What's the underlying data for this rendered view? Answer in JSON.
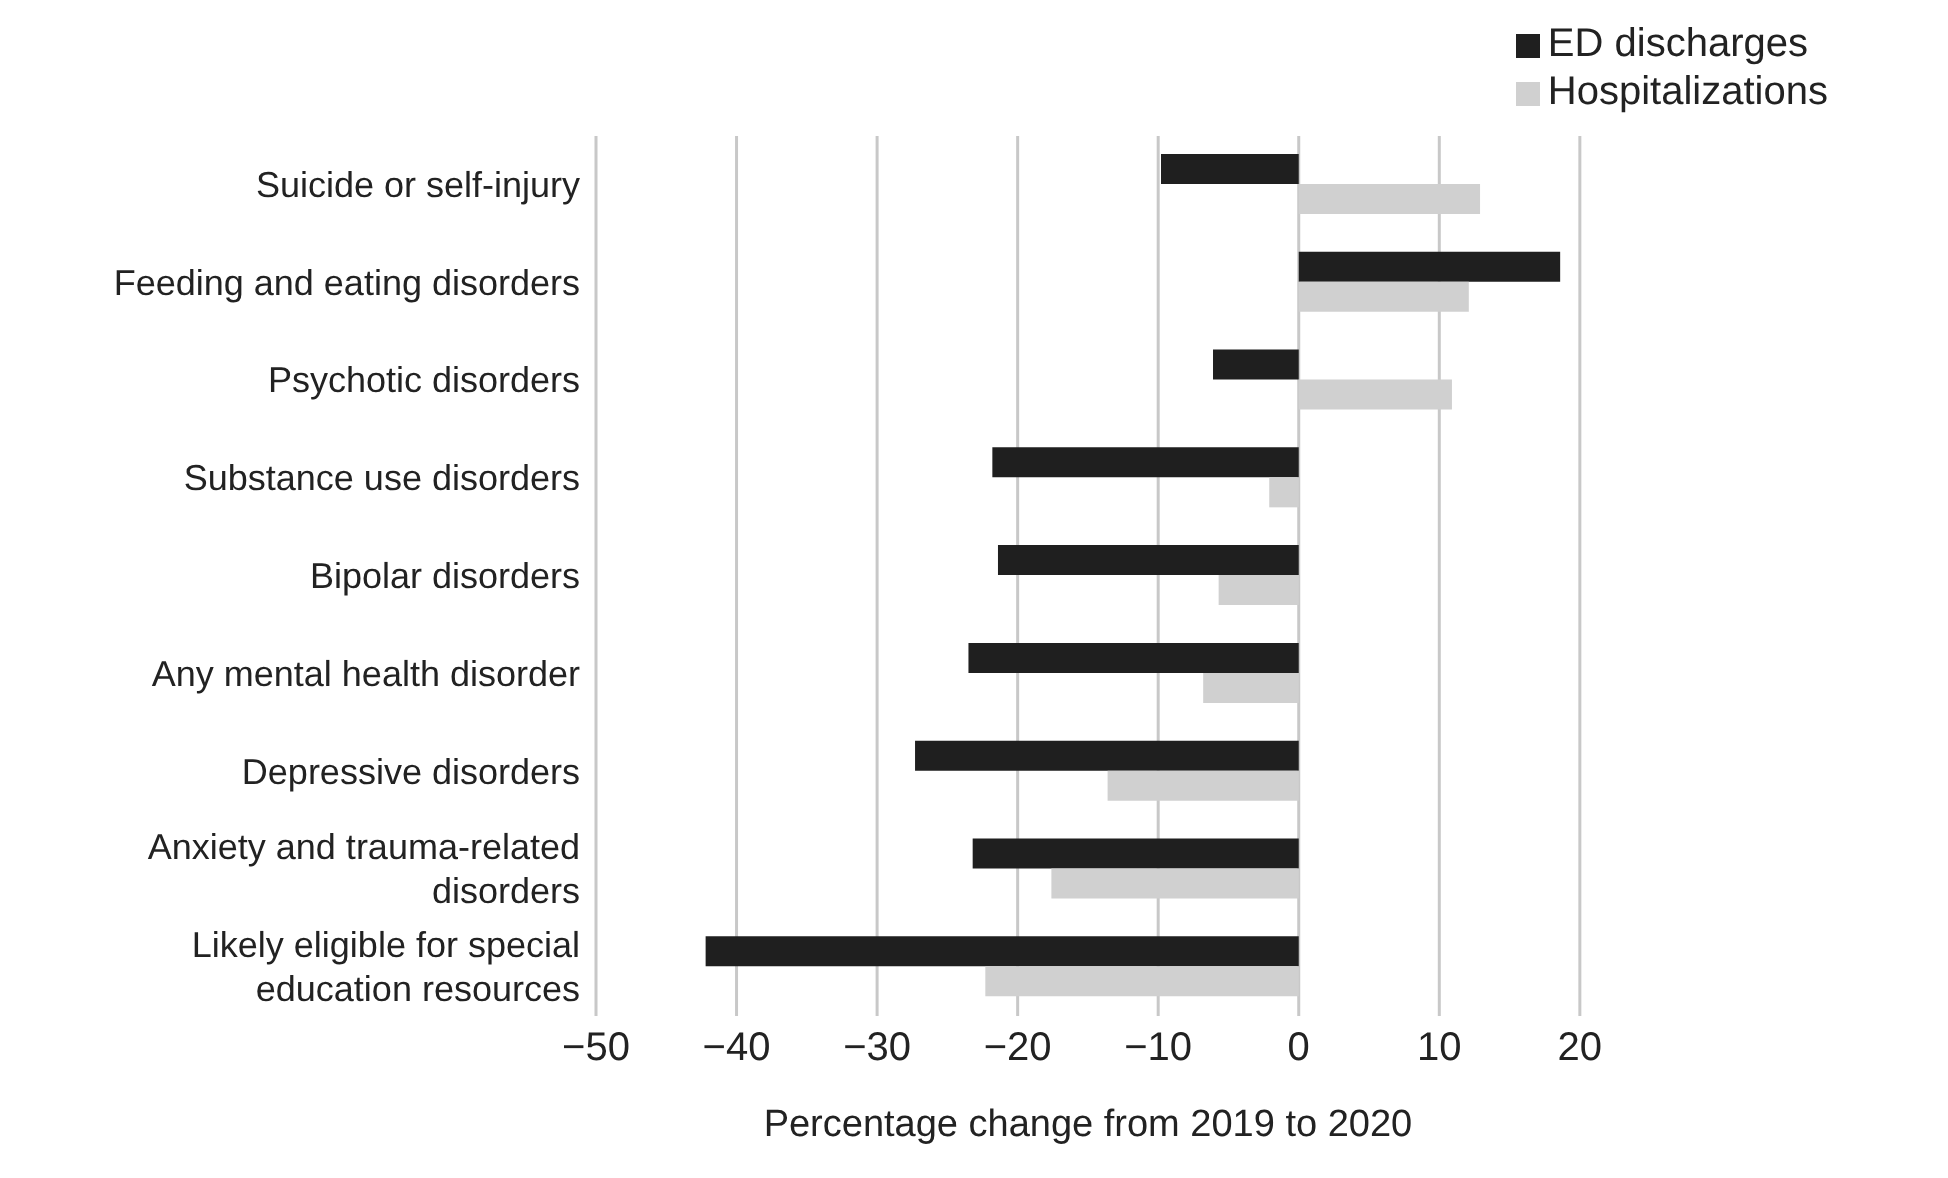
{
  "chart_data": {
    "type": "bar",
    "orientation": "horizontal",
    "xlabel": "Percentage change from 2019 to 2020",
    "categories": [
      "Suicide or self-injury",
      "Feeding and eating disorders",
      "Psychotic disorders",
      "Substance use disorders",
      "Bipolar disorders",
      "Any mental health disorder",
      "Depressive disorders",
      "Anxiety and trauma-related disorders",
      "Likely eligible for special education resources"
    ],
    "series": [
      {
        "name": "ED discharges",
        "color": "#1f1f1f",
        "values": [
          -9.8,
          18.6,
          -6.1,
          -21.8,
          -21.4,
          -23.5,
          -27.3,
          -23.2,
          -42.2
        ]
      },
      {
        "name": "Hospitalizations",
        "color": "#d0d0d0",
        "values": [
          12.9,
          12.1,
          10.9,
          -2.1,
          -5.7,
          -6.8,
          -13.6,
          -17.6,
          -22.3
        ]
      }
    ],
    "xlim": [
      -50,
      20
    ],
    "xticks": [
      -50,
      -40,
      -30,
      -20,
      -10,
      0,
      10,
      20
    ],
    "grid": "x",
    "legend": "top right"
  }
}
